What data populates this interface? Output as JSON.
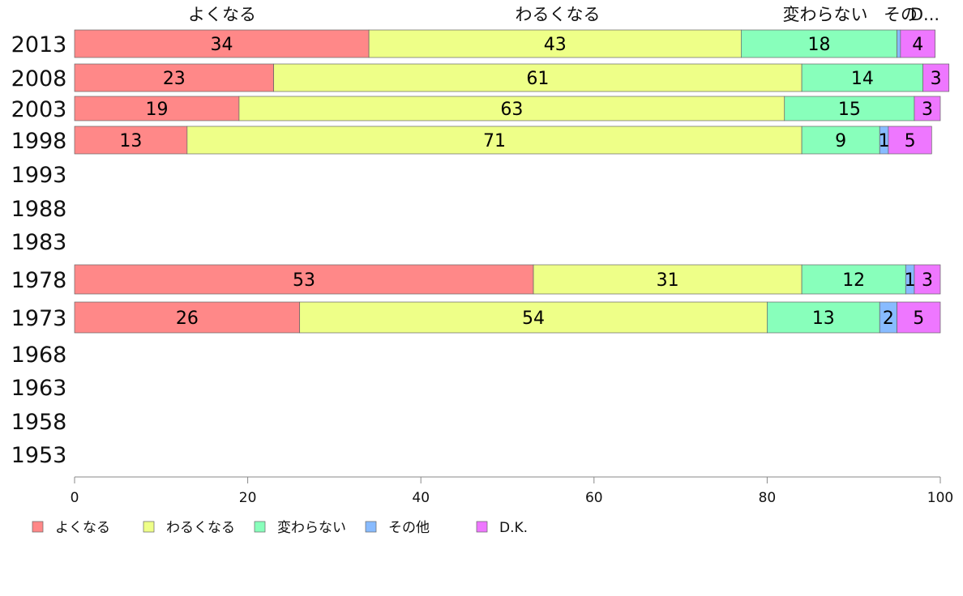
{
  "chart_data": {
    "type": "bar",
    "orientation": "horizontal",
    "stacked": true,
    "categories": [
      "2013",
      "2008",
      "2003",
      "1998",
      "1993",
      "1988",
      "1983",
      "1978",
      "1973",
      "1968",
      "1963",
      "1958",
      "1953"
    ],
    "series": [
      {
        "name": "よくなる",
        "color": "#ff8888",
        "values": [
          34,
          23,
          19,
          13,
          null,
          null,
          null,
          53,
          26,
          null,
          null,
          null,
          null
        ]
      },
      {
        "name": "わるくなる",
        "color": "#eeff88",
        "values": [
          43,
          61,
          63,
          71,
          null,
          null,
          null,
          31,
          54,
          null,
          null,
          null,
          null
        ]
      },
      {
        "name": "変わらない",
        "color": "#88ffbb",
        "values": [
          18,
          14,
          15,
          9,
          null,
          null,
          null,
          12,
          13,
          null,
          null,
          null,
          null
        ]
      },
      {
        "name": "その他",
        "color": "#88bbff",
        "values": [
          0.4,
          0,
          0,
          1,
          null,
          null,
          null,
          1,
          2,
          null,
          null,
          null,
          null
        ]
      },
      {
        "name": "D.K.",
        "color": "#ee77ff",
        "values": [
          4,
          3,
          3,
          5,
          null,
          null,
          null,
          3,
          5,
          null,
          null,
          null,
          null
        ]
      }
    ],
    "data_labels": [
      [
        "34",
        "23",
        "19",
        "13",
        "",
        "",
        "",
        "53",
        "26",
        "",
        "",
        "",
        ""
      ],
      [
        "43",
        "61",
        "63",
        "71",
        "",
        "",
        "",
        "31",
        "54",
        "",
        "",
        "",
        ""
      ],
      [
        "18",
        "14",
        "15",
        "9",
        "",
        "",
        "",
        "12",
        "13",
        "",
        "",
        "",
        ""
      ],
      [
        "",
        "",
        "",
        "1",
        "",
        "",
        "",
        "1",
        "2",
        "",
        "",
        "",
        ""
      ],
      [
        "4",
        "3",
        "3",
        "5",
        "",
        "",
        "",
        "3",
        "5",
        "",
        "",
        "",
        ""
      ]
    ],
    "top_labels": [
      "よくなる",
      "わるくなる",
      "変わらない",
      "その",
      "D..."
    ],
    "xlim": [
      0,
      100
    ],
    "xticks": [
      "0",
      "20",
      "40",
      "60",
      "80",
      "100"
    ],
    "grid": false,
    "legend_position": "bottom-left"
  }
}
